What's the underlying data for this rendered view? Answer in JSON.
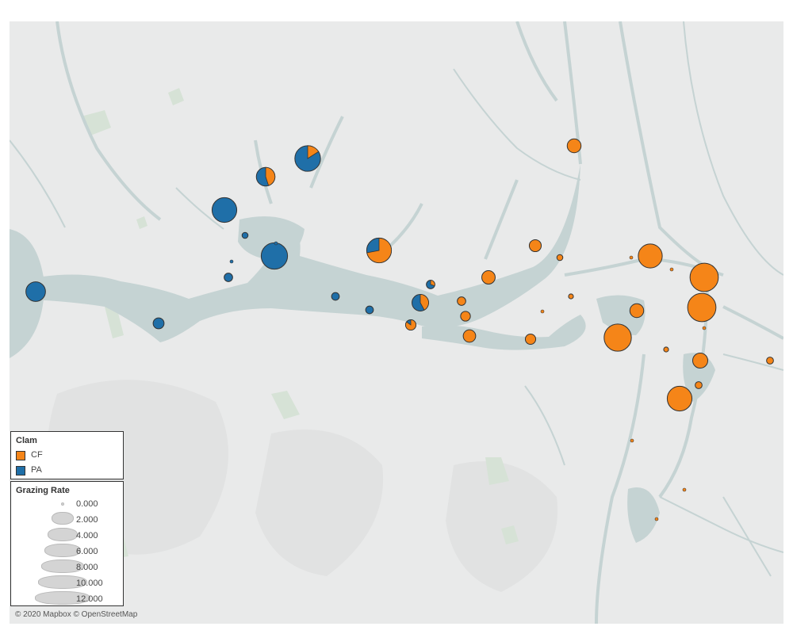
{
  "map": {
    "colors": {
      "land": "#e9eaea",
      "water": "#c5d3d3",
      "cf": "#f58518",
      "pa": "#1f6fa8"
    },
    "sites": [
      {
        "clam": "PA",
        "rate": 3.2,
        "cf_share": 0
      },
      {
        "clam": "PA",
        "rate": 1.0,
        "cf_share": 0
      },
      {
        "clam": "PA",
        "rate": 5.1,
        "cf_share": 0
      },
      {
        "clam": "PA",
        "rate": 0.3,
        "cf_share": 0
      },
      {
        "clam": "PA",
        "rate": 0.6,
        "cf_share": 0
      },
      {
        "clam": "PA",
        "rate": 5.8,
        "cf_share": 0
      },
      {
        "clam": "PA",
        "rate": 0.1,
        "cf_share": 0
      },
      {
        "clam": "PA",
        "rate": 0.5,
        "cf_share": 0
      },
      {
        "clam": "PA",
        "rate": 0.5,
        "cf_share": 0
      },
      {
        "clam": "PA",
        "rate": 0.1,
        "cf_share": 0
      },
      {
        "clam": "Mixed",
        "rate": 2.9,
        "cf_share": 0.45
      },
      {
        "clam": "Mixed",
        "rate": 5.5,
        "cf_share": 0.16
      },
      {
        "clam": "Mixed",
        "rate": 5.1,
        "cf_share": 0.72
      },
      {
        "clam": "Mixed",
        "rate": 0.6,
        "cf_share": 0.3
      },
      {
        "clam": "Mixed",
        "rate": 2.3,
        "cf_share": 0.42
      },
      {
        "clam": "Mixed",
        "rate": 0.9,
        "cf_share": 0.85
      },
      {
        "clam": "CF",
        "rate": 1.6,
        "cf_share": 1
      },
      {
        "clam": "CF",
        "rate": 1.2,
        "cf_share": 1
      },
      {
        "clam": "CF",
        "rate": 0.3,
        "cf_share": 1
      },
      {
        "clam": "CF",
        "rate": 1.5,
        "cf_share": 1
      },
      {
        "clam": "CF",
        "rate": 0.6,
        "cf_share": 1
      },
      {
        "clam": "CF",
        "rate": 0.8,
        "cf_share": 1
      },
      {
        "clam": "CF",
        "rate": 1.3,
        "cf_share": 1
      },
      {
        "clam": "CF",
        "rate": 0.9,
        "cf_share": 1
      },
      {
        "clam": "CF",
        "rate": 0.1,
        "cf_share": 1
      },
      {
        "clam": "CF",
        "rate": 0.2,
        "cf_share": 1
      },
      {
        "clam": "CF",
        "rate": 4.8,
        "cf_share": 1
      },
      {
        "clam": "CF",
        "rate": 1.6,
        "cf_share": 1
      },
      {
        "clam": "CF",
        "rate": 0.1,
        "cf_share": 1
      },
      {
        "clam": "CF",
        "rate": 6.2,
        "cf_share": 1
      },
      {
        "clam": "CF",
        "rate": 6.7,
        "cf_share": 1
      },
      {
        "clam": "CF",
        "rate": 6.7,
        "cf_share": 1
      },
      {
        "clam": "CF",
        "rate": 1.9,
        "cf_share": 1
      },
      {
        "clam": "CF",
        "rate": 0.4,
        "cf_share": 1
      },
      {
        "clam": "CF",
        "rate": 5.1,
        "cf_share": 1
      },
      {
        "clam": "CF",
        "rate": 0.4,
        "cf_share": 1
      },
      {
        "clam": "CF",
        "rate": 0.1,
        "cf_share": 1
      },
      {
        "clam": "CF",
        "rate": 0.1,
        "cf_share": 1
      },
      {
        "clam": "CF",
        "rate": 0.2,
        "cf_share": 1
      },
      {
        "clam": "CF",
        "rate": 0.1,
        "cf_share": 1
      },
      {
        "clam": "CF",
        "rate": 0.1,
        "cf_share": 1
      },
      {
        "clam": "CF",
        "rate": 0.1,
        "cf_share": 1
      }
    ]
  },
  "legend_clam": {
    "title": "Clam",
    "items": [
      {
        "label": "CF",
        "color": "#f58518"
      },
      {
        "label": "PA",
        "color": "#1f6fa8"
      }
    ]
  },
  "legend_grazing": {
    "title": "Grazing Rate",
    "items": [
      "0.000",
      "2.000",
      "4.000",
      "6.000",
      "8.000",
      "10.000",
      "12.000"
    ]
  },
  "attribution": "© 2020 Mapbox © OpenStreetMap"
}
